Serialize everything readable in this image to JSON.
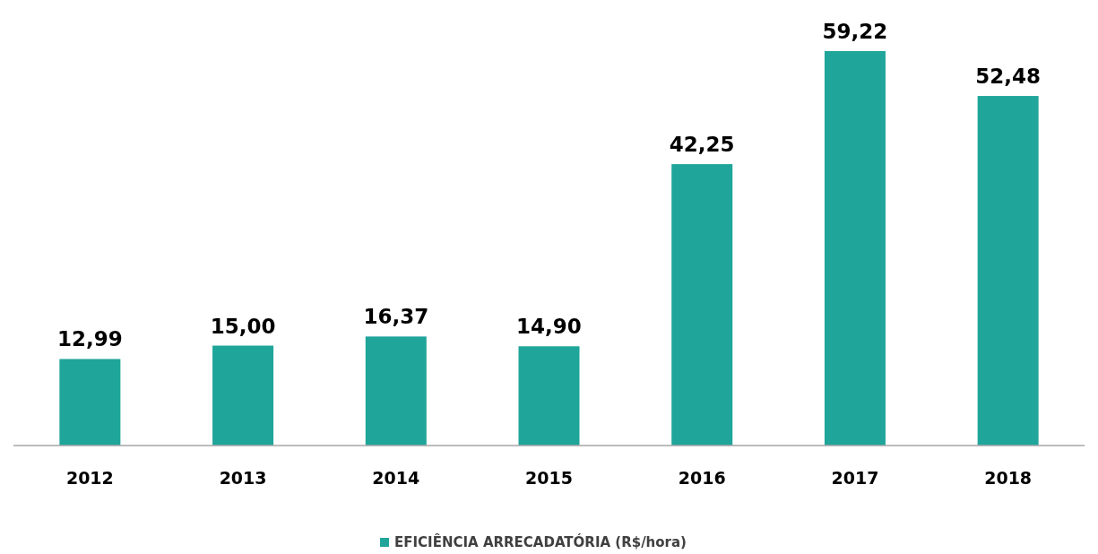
{
  "chart_data": {
    "type": "bar",
    "categories": [
      "2012",
      "2013",
      "2014",
      "2015",
      "2016",
      "2017",
      "2018"
    ],
    "series": [
      {
        "name": "EFICIÊNCIA ARRECADATÓRIA (R$/hora)",
        "color": "#1fa59a",
        "values": [
          12.99,
          15.0,
          16.37,
          14.9,
          42.25,
          59.22,
          52.48
        ],
        "value_labels": [
          "12,99",
          "15,00",
          "16,37",
          "14,90",
          "42,25",
          "59,22",
          "52,48"
        ]
      }
    ],
    "legend": "bottom"
  }
}
